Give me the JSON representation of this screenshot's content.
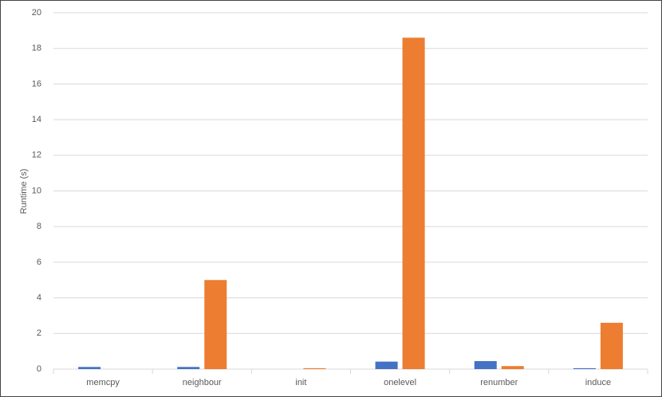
{
  "chart_data": {
    "type": "bar",
    "y_label": "Runtime (s)",
    "categories": [
      "memcpy",
      "neighbour",
      "init",
      "onelevel",
      "renumber",
      "induce"
    ],
    "series": [
      {
        "color": "#4472c4",
        "values": [
          0.12,
          0.12,
          0,
          0.42,
          0.45,
          0.05
        ]
      },
      {
        "color": "#ed7d31",
        "values": [
          0,
          5.0,
          0.05,
          18.6,
          0.17,
          2.6
        ]
      }
    ],
    "ylim": [
      0,
      20
    ],
    "yticks": [
      0,
      2,
      4,
      6,
      8,
      10,
      12,
      14,
      16,
      18,
      20
    ],
    "grid": true
  }
}
